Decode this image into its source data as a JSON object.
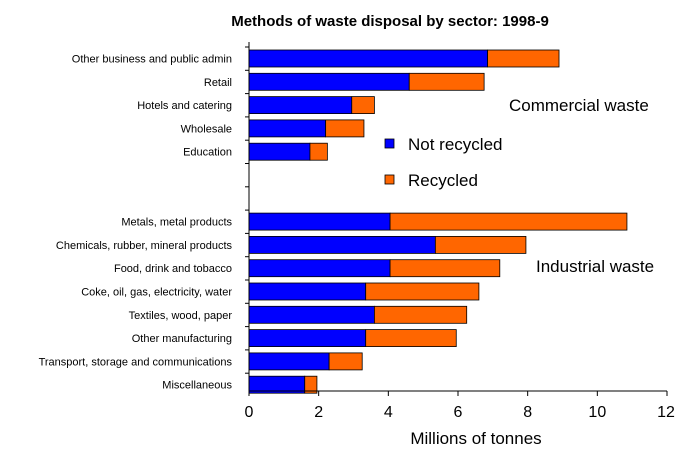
{
  "chart_data": {
    "type": "bar",
    "orientation": "horizontal",
    "stacked": true,
    "title": "Methods of waste disposal by sector: 1998-9",
    "xlabel": "Millions of tonnes",
    "ylabel": "",
    "xlim": [
      0,
      12
    ],
    "xticks": [
      "0",
      "2",
      "4",
      "6",
      "8",
      "10",
      "12"
    ],
    "legend_position": "center-right",
    "colors": {
      "not_recycled": "#0000ff",
      "recycled": "#ff6600"
    },
    "series": [
      {
        "name": "Not recycled",
        "color": "#0000ff"
      },
      {
        "name": "Recycled",
        "color": "#ff6600"
      }
    ],
    "groups": [
      {
        "label": "Commercial waste"
      },
      {
        "label": "Industrial waste"
      }
    ],
    "rows": [
      {
        "category": "Other business and public admin",
        "not_recycled": 6.85,
        "recycled": 2.05
      },
      {
        "category": "Retail",
        "not_recycled": 4.6,
        "recycled": 2.15
      },
      {
        "category": "Hotels and catering",
        "not_recycled": 2.95,
        "recycled": 0.65
      },
      {
        "category": "Wholesale",
        "not_recycled": 2.2,
        "recycled": 1.1
      },
      {
        "category": "Education",
        "not_recycled": 1.75,
        "recycled": 0.5
      },
      {
        "category": "",
        "not_recycled": null,
        "recycled": null
      },
      {
        "category": "",
        "not_recycled": null,
        "recycled": null
      },
      {
        "category": "Metals, metal products",
        "not_recycled": 4.05,
        "recycled": 6.8
      },
      {
        "category": "Chemicals, rubber, mineral products",
        "not_recycled": 5.35,
        "recycled": 2.6
      },
      {
        "category": "Food, drink and tobacco",
        "not_recycled": 4.05,
        "recycled": 3.15
      },
      {
        "category": "Coke, oil, gas, electricity, water",
        "not_recycled": 3.35,
        "recycled": 3.25
      },
      {
        "category": "Textiles, wood, paper",
        "not_recycled": 3.6,
        "recycled": 2.65
      },
      {
        "category": "Other manufacturing",
        "not_recycled": 3.35,
        "recycled": 2.6
      },
      {
        "category": "Transport, storage and communications",
        "not_recycled": 2.3,
        "recycled": 0.95
      },
      {
        "category": "Miscellaneous",
        "not_recycled": 1.6,
        "recycled": 0.35
      }
    ]
  }
}
